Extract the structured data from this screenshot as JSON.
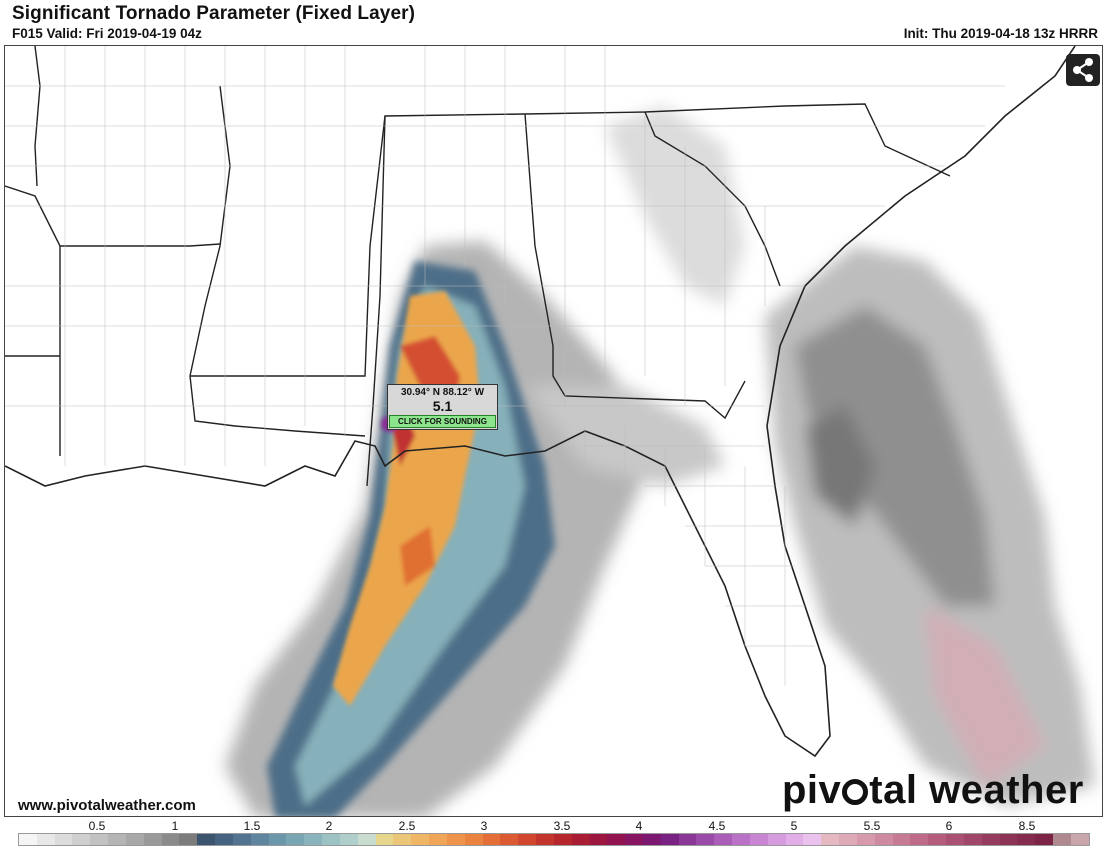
{
  "header": {
    "title": "Significant Tornado Parameter (Fixed Layer)",
    "valid": "F015 Valid: Fri 2019-04-19 04z",
    "init": "Init: Thu 2019-04-18 13z HRRR"
  },
  "popup": {
    "coords": "30.94° N 88.12° W",
    "value": "5.1",
    "button_label": "CLICK FOR SOUNDING"
  },
  "footer": {
    "website": "www.pivotalweather.com",
    "logo_text": "pivotal weather"
  },
  "scale": {
    "ticks": [
      "0.5",
      "1",
      "1.5",
      "2",
      "2.5",
      "3",
      "3.5",
      "4",
      "4.5",
      "5",
      "5.5",
      "6",
      "8.5"
    ],
    "colors": [
      "#f5f5f5",
      "#e8e8e8",
      "#dcdcdc",
      "#cfcfcf",
      "#c2c2c2",
      "#b5b5b5",
      "#a8a8a8",
      "#9a9a9a",
      "#8b8b8b",
      "#7c7c7c",
      "#3c546e",
      "#466482",
      "#527490",
      "#5f869e",
      "#6c96aa",
      "#7aa6b4",
      "#8ab4bc",
      "#9cc2c4",
      "#b0cfcc",
      "#c8dccf",
      "#e6d68c",
      "#ecc678",
      "#efb666",
      "#f0a656",
      "#ee944a",
      "#ea8240",
      "#e46e38",
      "#dc5a32",
      "#d0462e",
      "#c2342c",
      "#b4262c",
      "#a81c34",
      "#9c1640",
      "#90124e",
      "#861460",
      "#7c1872",
      "#7a2284",
      "#8a3696",
      "#9a4aa8",
      "#aa5eb8",
      "#ba72c6",
      "#c886d2",
      "#d69ade",
      "#e2aee8",
      "#ebc2ee",
      "#e6b8c2",
      "#deaab8",
      "#d69aac",
      "#ce8aa0",
      "#c67a94",
      "#be6a88",
      "#b45c7c",
      "#aa5072",
      "#a04668",
      "#963c5e",
      "#8c3456",
      "#842c4e",
      "#7c2446",
      "#b08890",
      "#c8a6ac"
    ]
  },
  "icons": {
    "share": "share-icon"
  }
}
